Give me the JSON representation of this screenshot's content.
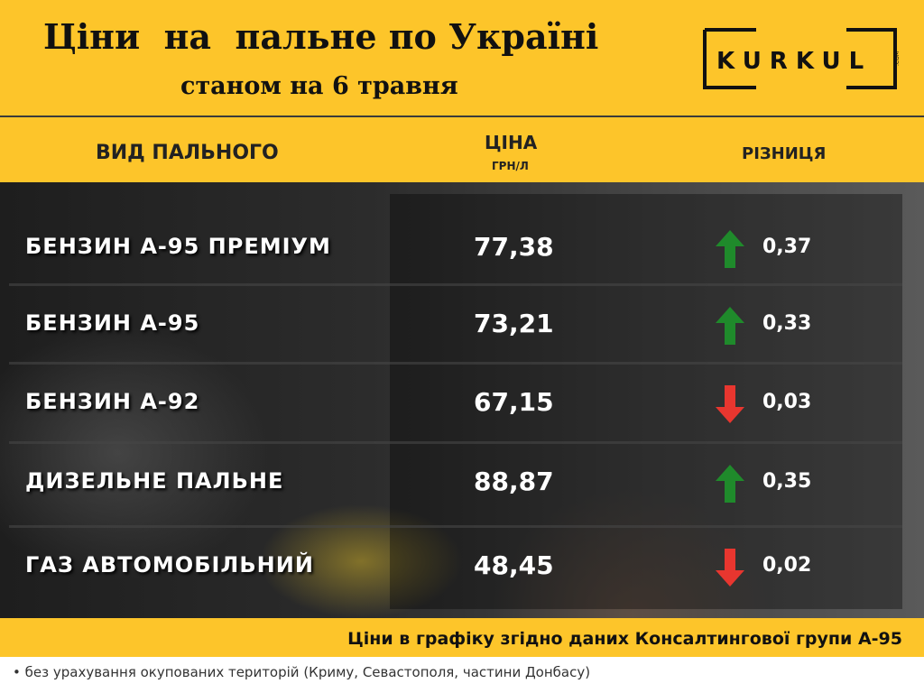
{
  "header": {
    "title": "Ціни  на  пальне по Україні",
    "subtitle": "станом на 6 травня",
    "logo": "KURKUL",
    "logo_suffix": ".COM"
  },
  "table": {
    "columns": {
      "fuel": "ВИД ПАЛЬНОГО",
      "price": "ЦІНА",
      "price_unit": "ГРН/Л",
      "change": "РІЗНИЦЯ"
    },
    "rows": [
      {
        "fuel": "БЕНЗИН А-95 ПРЕМІУМ",
        "price": "77,38",
        "change": "0,37",
        "direction": "up"
      },
      {
        "fuel": "БЕНЗИН А-95",
        "price": "73,21",
        "change": "0,33",
        "direction": "up"
      },
      {
        "fuel": "БЕНЗИН А-92",
        "price": "67,15",
        "change": "0,03",
        "direction": "down"
      },
      {
        "fuel": "ДИЗЕЛЬНЕ ПАЛЬНЕ",
        "price": "88,87",
        "change": "0,35",
        "direction": "up"
      },
      {
        "fuel": "ГАЗ АВТОМОБІЛЬНИЙ",
        "price": "48,45",
        "change": "0,02",
        "direction": "down"
      }
    ]
  },
  "footer": {
    "source": "Ціни в графіку згідно даних Консалтингової групи А-95",
    "note": "без урахування окупованих територій (Криму, Севастополя, частини Донбасу)"
  }
}
